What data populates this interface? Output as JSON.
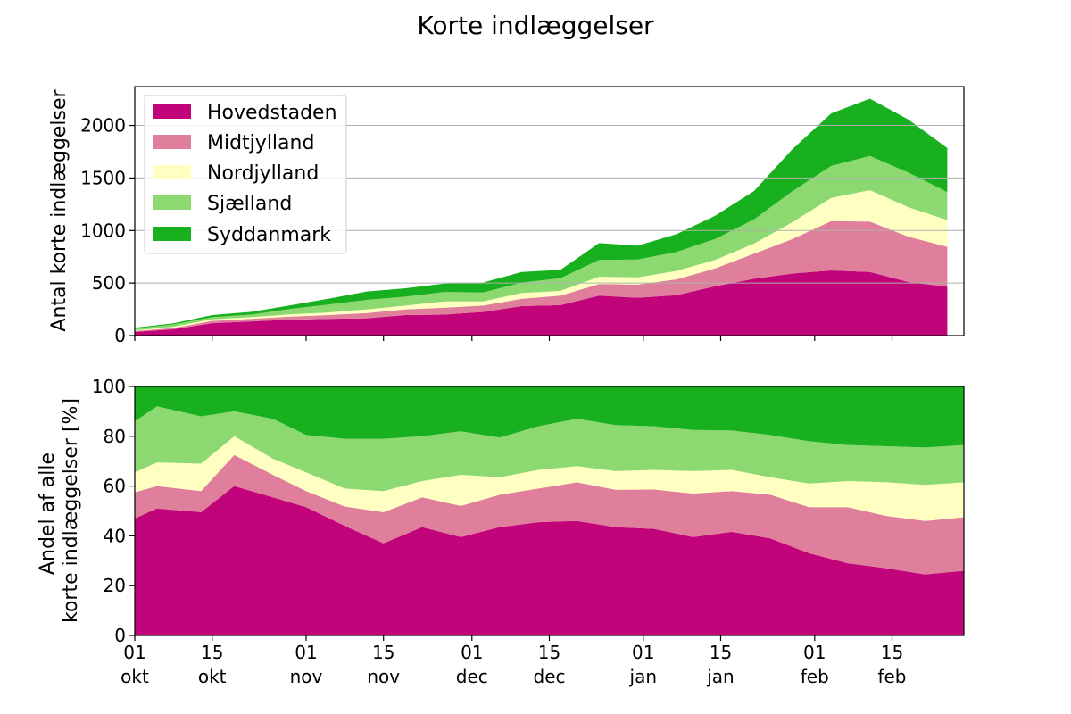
{
  "figure_title": "Korte indlæggelser",
  "chart_data": [
    {
      "type": "area",
      "stacked": true,
      "title": "",
      "xlabel": "",
      "ylabel": "Antal korte indlæggelser",
      "x": [
        "2020-10-01",
        "2020-10-08",
        "2020-10-15",
        "2020-10-22",
        "2020-10-29",
        "2020-11-05",
        "2020-11-12",
        "2020-11-19",
        "2020-11-26",
        "2020-12-03",
        "2020-12-10",
        "2020-12-17",
        "2020-12-24",
        "2020-12-31",
        "2021-01-07",
        "2021-01-14",
        "2021-01-21",
        "2021-01-28",
        "2021-02-04",
        "2021-02-11",
        "2021-02-18",
        "2021-02-25"
      ],
      "series": [
        {
          "name": "Hovedstaden",
          "values": [
            35,
            60,
            118,
            135,
            150,
            160,
            165,
            195,
            200,
            225,
            280,
            290,
            380,
            360,
            385,
            470,
            540,
            590,
            620,
            605,
            510,
            465
          ]
        },
        {
          "name": "Midtjylland",
          "values": [
            8,
            12,
            22,
            25,
            30,
            35,
            50,
            55,
            65,
            60,
            70,
            90,
            110,
            125,
            150,
            170,
            240,
            330,
            470,
            480,
            430,
            380
          ]
        },
        {
          "name": "Nordjylland",
          "values": [
            6,
            12,
            15,
            15,
            22,
            25,
            35,
            35,
            60,
            40,
            55,
            45,
            70,
            70,
            80,
            80,
            95,
            160,
            220,
            300,
            280,
            255
          ]
        },
        {
          "name": "Sjælland",
          "values": [
            16,
            22,
            20,
            25,
            50,
            75,
            90,
            85,
            90,
            85,
            100,
            120,
            160,
            170,
            180,
            200,
            230,
            295,
            305,
            325,
            330,
            265
          ]
        },
        {
          "name": "Syddanmark",
          "values": [
            10,
            10,
            20,
            25,
            35,
            55,
            80,
            80,
            80,
            95,
            100,
            80,
            160,
            130,
            170,
            220,
            270,
            400,
            500,
            545,
            505,
            420
          ]
        }
      ],
      "ylim": [
        0,
        2370
      ],
      "yticks": [
        0,
        500,
        1000,
        1500,
        2000
      ],
      "grid": "horizontal",
      "legend": "top-left"
    },
    {
      "type": "area",
      "stacked": true,
      "title": "",
      "xlabel": "",
      "ylabel": [
        "Andel af alle",
        "korte indlæggelser [%]"
      ],
      "x": [
        "2020-10-01",
        "2020-10-05",
        "2020-10-13",
        "2020-10-19",
        "2020-10-26",
        "2020-11-01",
        "2020-11-08",
        "2020-11-15",
        "2020-11-22",
        "2020-11-29",
        "2020-12-06",
        "2020-12-13",
        "2020-12-20",
        "2020-12-27",
        "2021-01-03",
        "2021-01-10",
        "2021-01-17",
        "2021-01-24",
        "2021-01-31",
        "2021-02-07",
        "2021-02-14",
        "2021-02-21",
        "2021-02-28"
      ],
      "series": [
        {
          "name": "Hovedstaden",
          "values": [
            47,
            51,
            49.5,
            60,
            55.5,
            51.5,
            44,
            37,
            43.5,
            39.5,
            43.5,
            45.5,
            46,
            43.5,
            42.8,
            39.5,
            41.6,
            39,
            33,
            29,
            27,
            24.5,
            26
          ]
        },
        {
          "name": "Midtjylland",
          "values": [
            10.5,
            9,
            8.5,
            12.5,
            9,
            6.5,
            7.8,
            12.5,
            12,
            12.5,
            13,
            13.5,
            15.5,
            15,
            15.8,
            17.5,
            16.4,
            17.5,
            18.5,
            22.5,
            21,
            21.5,
            21.5
          ]
        },
        {
          "name": "Nordjylland",
          "values": [
            8,
            9.5,
            11,
            7.5,
            6.5,
            7.5,
            7.2,
            8.5,
            6.5,
            12.5,
            7,
            7.5,
            6.5,
            7.5,
            7.9,
            9,
            8.5,
            7,
            9.5,
            10.5,
            13.5,
            14.5,
            14
          ]
        },
        {
          "name": "Sjælland",
          "values": [
            20.5,
            22.5,
            19,
            10,
            16,
            15,
            20,
            21,
            18,
            17.5,
            16,
            17.5,
            19,
            18.5,
            17.5,
            16.5,
            15.8,
            17,
            17,
            14.5,
            14.5,
            15,
            15
          ]
        },
        {
          "name": "Syddanmark",
          "values": [
            14,
            8,
            12,
            10,
            13,
            19.5,
            21,
            21,
            20,
            18,
            20.5,
            16,
            13,
            15.5,
            16,
            17.5,
            17.7,
            19.5,
            22,
            23.5,
            24,
            24.5,
            23.5
          ]
        }
      ],
      "ylim": [
        0,
        100
      ],
      "yticks": [
        0,
        20,
        40,
        60,
        80,
        100
      ],
      "grid": "none"
    }
  ],
  "xaxis": {
    "range": [
      "2020-10-01",
      "2021-02-28"
    ],
    "ticks": [
      {
        "date": "2020-10-01",
        "day": "01",
        "month": "okt"
      },
      {
        "date": "2020-10-15",
        "day": "15",
        "month": "okt"
      },
      {
        "date": "2020-11-01",
        "day": "01",
        "month": "nov"
      },
      {
        "date": "2020-11-15",
        "day": "15",
        "month": "nov"
      },
      {
        "date": "2020-12-01",
        "day": "01",
        "month": "dec"
      },
      {
        "date": "2020-12-15",
        "day": "15",
        "month": "dec"
      },
      {
        "date": "2021-01-01",
        "day": "01",
        "month": "jan"
      },
      {
        "date": "2021-01-15",
        "day": "15",
        "month": "jan"
      },
      {
        "date": "2021-02-01",
        "day": "01",
        "month": "feb"
      },
      {
        "date": "2021-02-15",
        "day": "15",
        "month": "feb"
      }
    ]
  },
  "colors": {
    "Hovedstaden": "#c2047a",
    "Midtjylland": "#df7f9b",
    "Nordjylland": "#ffffc2",
    "Sjælland": "#8dd971",
    "Syddanmark": "#18b01e"
  }
}
